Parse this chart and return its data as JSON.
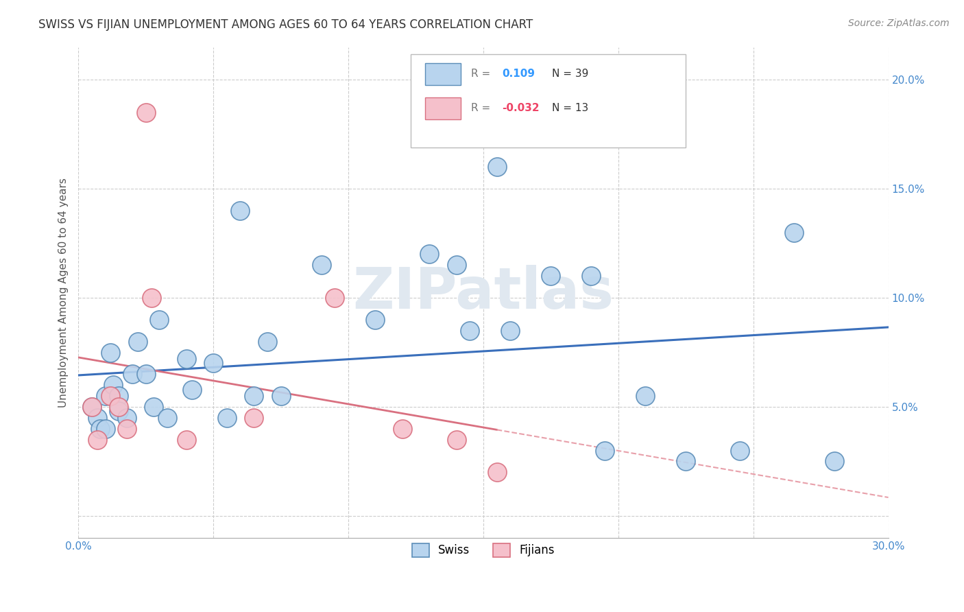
{
  "title": "SWISS VS FIJIAN UNEMPLOYMENT AMONG AGES 60 TO 64 YEARS CORRELATION CHART",
  "source": "Source: ZipAtlas.com",
  "ylabel": "Unemployment Among Ages 60 to 64 years",
  "xlim": [
    0.0,
    0.3
  ],
  "ylim": [
    -0.01,
    0.215
  ],
  "xticks": [
    0.0,
    0.05,
    0.1,
    0.15,
    0.2,
    0.25,
    0.3
  ],
  "yticks": [
    0.0,
    0.05,
    0.1,
    0.15,
    0.2
  ],
  "swiss_x": [
    0.005,
    0.007,
    0.008,
    0.01,
    0.01,
    0.012,
    0.013,
    0.015,
    0.015,
    0.018,
    0.02,
    0.022,
    0.025,
    0.028,
    0.03,
    0.033,
    0.04,
    0.042,
    0.05,
    0.055,
    0.06,
    0.065,
    0.07,
    0.075,
    0.09,
    0.11,
    0.13,
    0.14,
    0.145,
    0.155,
    0.16,
    0.175,
    0.19,
    0.195,
    0.21,
    0.225,
    0.245,
    0.265,
    0.28
  ],
  "swiss_y": [
    0.05,
    0.045,
    0.04,
    0.055,
    0.04,
    0.075,
    0.06,
    0.055,
    0.048,
    0.045,
    0.065,
    0.08,
    0.065,
    0.05,
    0.09,
    0.045,
    0.072,
    0.058,
    0.07,
    0.045,
    0.14,
    0.055,
    0.08,
    0.055,
    0.115,
    0.09,
    0.12,
    0.115,
    0.085,
    0.16,
    0.085,
    0.11,
    0.11,
    0.03,
    0.055,
    0.025,
    0.03,
    0.13,
    0.025
  ],
  "fijian_x": [
    0.005,
    0.007,
    0.012,
    0.015,
    0.018,
    0.025,
    0.027,
    0.04,
    0.065,
    0.095,
    0.12,
    0.14,
    0.155
  ],
  "fijian_y": [
    0.05,
    0.035,
    0.055,
    0.05,
    0.04,
    0.185,
    0.1,
    0.035,
    0.045,
    0.1,
    0.04,
    0.035,
    0.02
  ],
  "swiss_r": 0.109,
  "swiss_n": 39,
  "fijian_r": -0.032,
  "fijian_n": 13,
  "swiss_color": "#b8d4ee",
  "swiss_edge_color": "#5b8db8",
  "fijian_color": "#f5c0cb",
  "fijian_edge_color": "#d97080",
  "swiss_line_color": "#3a6fbb",
  "fijian_line_solid_color": "#d97080",
  "fijian_line_dash_color": "#e8a0aa",
  "background_color": "#ffffff",
  "grid_color": "#cccccc",
  "title_color": "#333333",
  "watermark_text": "ZIPatlas",
  "watermark_color": "#e0e8f0",
  "legend_r_label_color": "#555555",
  "legend_r_swiss_color": "#3399ff",
  "legend_r_fijian_color": "#ee4466",
  "legend_n_color": "#333333",
  "axis_tick_color": "#4488cc",
  "ylabel_color": "#555555"
}
